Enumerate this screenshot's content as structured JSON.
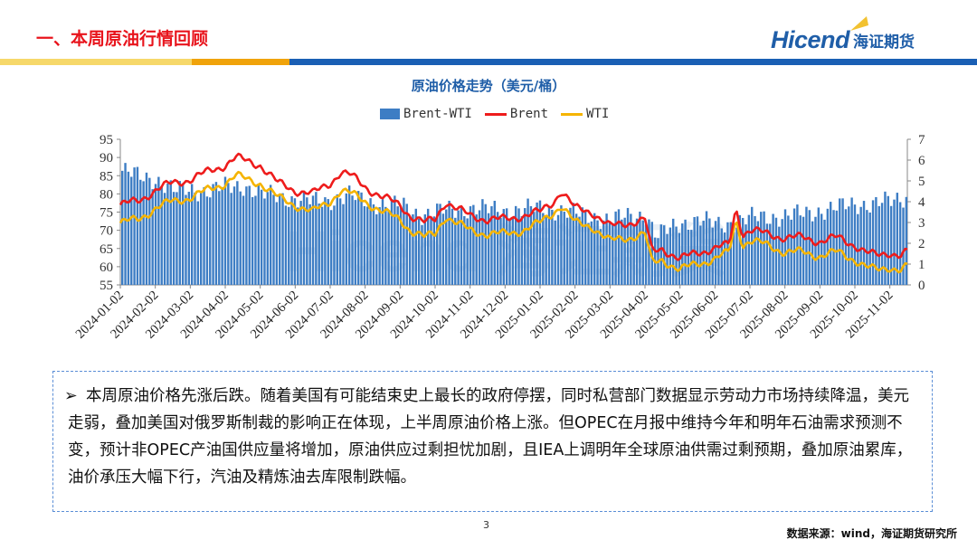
{
  "header": {
    "title": "一、本周原油行情回顾",
    "logo_en": "Hicend",
    "logo_cn": "海证期货"
  },
  "colors": {
    "brand_blue": "#1f5ea8",
    "title_red": "#e8141c",
    "band_yellow": "#f2c231",
    "band_orange": "#f0a30a",
    "band_blue": "#1a5fb4",
    "bar_blue": "#3d7dc4",
    "brent_red": "#ee1c1c",
    "wti_yellow": "#f5b400"
  },
  "chart_data": {
    "type": "bar+line",
    "title": "原油价格走势（美元/桶）",
    "legend": [
      "Brent-WTI",
      "Brent",
      "WTI"
    ],
    "legend_position": "top-center",
    "y_left": {
      "min": 55,
      "max": 95,
      "ticks": [
        55,
        60,
        65,
        70,
        75,
        80,
        85,
        90,
        95
      ]
    },
    "y_right": {
      "min": 0,
      "max": 7,
      "ticks": [
        0,
        1,
        2,
        3,
        4,
        5,
        6,
        7
      ]
    },
    "x_tick_labels": [
      "2024-01-02",
      "2024-02-02",
      "2024-03-02",
      "2024-04-02",
      "2024-05-02",
      "2024-06-02",
      "2024-07-02",
      "2024-08-02",
      "2024-09-02",
      "2024-10-02",
      "2024-11-02",
      "2024-12-02",
      "2025-01-02",
      "2025-02-02",
      "2025-03-02",
      "2025-04-02",
      "2025-05-02",
      "2025-06-02",
      "2025-07-02",
      "2025-08-02",
      "2025-09-02",
      "2025-10-02",
      "2025-11-02"
    ],
    "x_tick_month_index": [
      0,
      1,
      2,
      3,
      4,
      5,
      6,
      7,
      8,
      9,
      10,
      11,
      12,
      13,
      14,
      15,
      16,
      17,
      18,
      19,
      20,
      21,
      22
    ],
    "x_range_months": [
      0,
      22.5
    ],
    "series": [
      {
        "name": "Brent",
        "axis": "left",
        "month_index": [
          0,
          0.5,
          1,
          1.5,
          2,
          2.5,
          3,
          3.3,
          3.6,
          4,
          4.5,
          5,
          5.5,
          6,
          6.3,
          6.6,
          7,
          7.5,
          8,
          8.3,
          8.7,
          9,
          9.3,
          9.6,
          10,
          10.5,
          11,
          11.5,
          12,
          12.4,
          12.6,
          13,
          13.5,
          14,
          14.5,
          15,
          15.2,
          15.5,
          16,
          16.5,
          17,
          17.4,
          17.6,
          17.8,
          18,
          18.5,
          19,
          19.5,
          20,
          20.5,
          21,
          21.3,
          21.6,
          22,
          22.3,
          22.5
        ],
        "values": [
          77,
          78,
          81,
          83,
          84,
          86,
          88,
          90,
          89,
          88,
          83,
          81,
          80,
          83,
          86,
          85,
          82,
          79,
          77,
          74,
          72,
          73,
          78,
          76,
          74,
          73,
          73,
          74,
          75,
          78,
          81,
          76,
          75,
          71,
          72,
          73,
          64,
          65,
          62,
          64,
          65,
          66,
          76,
          69,
          70,
          69,
          68,
          68,
          67,
          68,
          66,
          64,
          63,
          64,
          63,
          64
        ]
      },
      {
        "name": "WTI",
        "axis": "left",
        "month_index": [
          0,
          0.5,
          1,
          1.5,
          2,
          2.5,
          3,
          3.3,
          3.6,
          4,
          4.5,
          5,
          5.5,
          6,
          6.3,
          6.6,
          7,
          7.5,
          8,
          8.3,
          8.7,
          9,
          9.3,
          9.6,
          10,
          10.5,
          11,
          11.5,
          12,
          12.4,
          12.6,
          13,
          13.5,
          14,
          14.5,
          15,
          15.2,
          15.5,
          16,
          16.5,
          17,
          17.4,
          17.6,
          17.8,
          18,
          18.5,
          19,
          19.5,
          20,
          20.5,
          21,
          21.3,
          21.6,
          22,
          22.3,
          22.5
        ],
        "values": [
          72,
          73,
          76,
          78,
          79,
          81,
          83,
          85,
          84,
          83,
          79,
          77,
          75,
          78,
          81,
          80,
          78,
          75,
          73,
          70,
          68,
          69,
          74,
          72,
          70,
          69,
          69,
          70,
          72,
          75,
          77,
          72,
          71,
          67,
          68,
          69,
          61,
          62,
          59,
          61,
          62,
          64,
          73,
          66,
          67,
          66,
          64,
          64,
          63,
          64,
          62,
          60,
          59,
          60,
          59,
          60
        ]
      },
      {
        "name": "Brent-WTI",
        "axis": "right",
        "type": "bar",
        "month_index": [
          0,
          0.5,
          1,
          1.5,
          2,
          2.5,
          3,
          3.5,
          4,
          4.5,
          5,
          5.5,
          6,
          6.5,
          7,
          7.5,
          8,
          8.5,
          9,
          9.5,
          10,
          10.5,
          11,
          11.5,
          12,
          12.5,
          13,
          13.5,
          14,
          14.5,
          15,
          15.3,
          15.6,
          16,
          16.5,
          17,
          17.5,
          18,
          18.5,
          19,
          19.5,
          20,
          20.5,
          21,
          21.5,
          22,
          22.5
        ],
        "values": [
          5.5,
          5.2,
          5.1,
          4.5,
          4.6,
          4.5,
          4.7,
          4.8,
          4.3,
          4.3,
          4.1,
          4.0,
          4.1,
          4.3,
          4.0,
          3.9,
          3.8,
          3.4,
          3.5,
          3.6,
          3.7,
          3.6,
          3.6,
          3.6,
          3.7,
          3.6,
          3.4,
          3.3,
          3.1,
          3.3,
          3.4,
          2.3,
          2.6,
          3.0,
          3.1,
          2.9,
          3.0,
          3.2,
          3.3,
          3.3,
          3.4,
          3.6,
          3.7,
          3.9,
          3.9,
          4.0,
          4.3
        ]
      }
    ]
  },
  "watermark": "Hicend 海证期货",
  "note": {
    "bullet": "➢",
    "text": "本周原油价格先涨后跌。随着美国有可能结束史上最长的政府停摆，同时私营部门数据显示劳动力市场持续降温，美元走弱，叠加美国对俄罗斯制裁的影响正在体现，上半周原油价格上涨。但OPEC在月报中维持今年和明年石油需求预测不变，预计非OPEC产油国供应量将增加，原油供应过剩担忧加剧，且IEA上调明年全球原油供需过剩预期，叠加原油累库，油价承压大幅下行，汽油及精炼油去库限制跌幅。"
  },
  "footer": {
    "page_number": "3",
    "source": "数据来源：wind，海证期货研究所"
  }
}
